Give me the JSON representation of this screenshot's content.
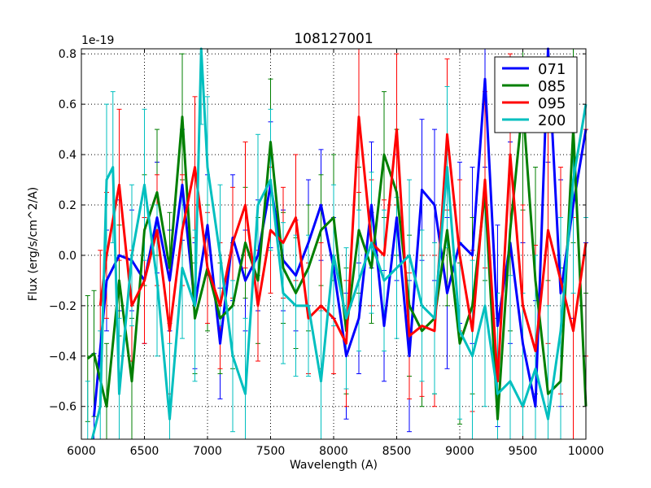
{
  "chart_data": {
    "type": "line",
    "title": "108127001",
    "xlabel": "Wavelength (A)",
    "ylabel": "Flux (erg/s/cm^2/A)",
    "y_offset_label": "1e-19",
    "xlim": [
      6000,
      10000
    ],
    "ylim": [
      -0.73,
      0.82
    ],
    "xticks": [
      6000,
      6500,
      7000,
      7500,
      8000,
      8500,
      9000,
      9500,
      10000
    ],
    "xtick_labels": [
      "6000",
      "6500",
      "7000",
      "7500",
      "8000",
      "8500",
      "9000",
      "9500",
      "10000"
    ],
    "yticks": [
      -0.6,
      -0.4,
      -0.2,
      0.0,
      0.2,
      0.4,
      0.6,
      0.8
    ],
    "ytick_labels": [
      "−0.6",
      "−0.4",
      "−0.2",
      "0.0",
      "0.2",
      "0.4",
      "0.6",
      "0.8"
    ],
    "grid": true,
    "legend_position": "top-right",
    "error_bars": true,
    "series": [
      {
        "name": "071",
        "color": "#0000ff",
        "x": [
          6100,
          6200,
          6300,
          6400,
          6500,
          6600,
          6700,
          6800,
          6900,
          7000,
          7100,
          7200,
          7300,
          7400,
          7500,
          7600,
          7700,
          7800,
          7900,
          8000,
          8100,
          8200,
          8300,
          8400,
          8500,
          8600,
          8700,
          8800,
          8900,
          9000,
          9100,
          9200,
          9300,
          9400,
          9500,
          9600,
          9700,
          9800,
          9900,
          10000
        ],
        "y": [
          -0.64,
          -0.1,
          0.0,
          -0.02,
          -0.1,
          0.15,
          -0.1,
          0.28,
          -0.2,
          0.12,
          -0.35,
          0.07,
          -0.1,
          0.0,
          0.28,
          -0.02,
          -0.08,
          0.05,
          0.2,
          -0.05,
          -0.4,
          -0.25,
          0.2,
          -0.28,
          0.15,
          -0.4,
          0.26,
          0.2,
          -0.15,
          0.05,
          0.0,
          0.7,
          -0.28,
          0.05,
          -0.35,
          -0.6,
          0.82,
          -0.15,
          0.2,
          0.5
        ],
        "err": [
          0.25,
          0.2,
          0.22,
          0.2,
          0.25,
          0.22,
          0.2,
          0.22,
          0.25,
          0.2,
          0.22,
          0.25,
          0.2,
          0.22,
          0.25,
          0.2,
          0.22,
          0.25,
          0.22,
          0.2,
          0.25,
          0.22,
          0.25,
          0.22,
          0.25,
          0.3,
          0.28,
          0.3,
          0.3,
          0.32,
          0.35,
          0.35,
          0.4,
          0.4,
          0.4,
          0.42,
          0.45,
          0.45,
          0.45,
          0.45
        ]
      },
      {
        "name": "085",
        "color": "#007f00",
        "x": [
          6050,
          6100,
          6200,
          6300,
          6400,
          6500,
          6600,
          6700,
          6800,
          6900,
          7000,
          7100,
          7200,
          7300,
          7400,
          7500,
          7600,
          7700,
          7800,
          7900,
          8000,
          8100,
          8200,
          8300,
          8400,
          8500,
          8600,
          8700,
          8800,
          8900,
          9000,
          9100,
          9200,
          9300,
          9400,
          9500,
          9600,
          9700,
          9800,
          9900,
          10000
        ],
        "y": [
          -0.41,
          -0.39,
          -0.6,
          -0.1,
          -0.5,
          0.1,
          0.25,
          -0.05,
          0.55,
          -0.25,
          -0.05,
          -0.25,
          -0.2,
          0.05,
          -0.1,
          0.45,
          -0.05,
          -0.15,
          -0.05,
          0.1,
          0.15,
          -0.3,
          0.1,
          -0.05,
          0.4,
          0.25,
          -0.2,
          -0.3,
          -0.25,
          0.1,
          -0.35,
          -0.2,
          0.25,
          -0.65,
          0.1,
          0.6,
          -0.1,
          -0.55,
          -0.5,
          0.5,
          -0.6
        ],
        "err": [
          0.25,
          0.25,
          0.25,
          0.22,
          0.25,
          0.22,
          0.25,
          0.22,
          0.25,
          0.22,
          0.25,
          0.22,
          0.25,
          0.22,
          0.25,
          0.25,
          0.22,
          0.22,
          0.25,
          0.22,
          0.25,
          0.25,
          0.25,
          0.22,
          0.25,
          0.25,
          0.28,
          0.3,
          0.3,
          0.3,
          0.32,
          0.35,
          0.35,
          0.4,
          0.4,
          0.42,
          0.45,
          0.45,
          0.45,
          0.45,
          0.45
        ]
      },
      {
        "name": "095",
        "color": "#ff0000",
        "x": [
          6150,
          6200,
          6300,
          6400,
          6500,
          6600,
          6700,
          6800,
          6900,
          7000,
          7100,
          7200,
          7300,
          7400,
          7500,
          7600,
          7700,
          7800,
          7900,
          8000,
          8100,
          8200,
          8300,
          8400,
          8500,
          8600,
          8700,
          8800,
          8900,
          9000,
          9100,
          9200,
          9300,
          9400,
          9500,
          9600,
          9700,
          9800,
          9900,
          10000
        ],
        "y": [
          -0.2,
          0.0,
          0.28,
          -0.2,
          -0.1,
          0.1,
          -0.3,
          0.1,
          0.35,
          -0.05,
          -0.2,
          0.05,
          0.2,
          -0.2,
          0.1,
          0.05,
          0.15,
          -0.25,
          -0.2,
          -0.25,
          -0.35,
          0.55,
          0.05,
          0.0,
          0.5,
          -0.32,
          -0.28,
          -0.3,
          0.48,
          0.0,
          -0.3,
          0.3,
          -0.5,
          0.4,
          -0.2,
          -0.38,
          0.1,
          -0.1,
          -0.3,
          0.05
        ],
        "err": [
          0.22,
          0.25,
          0.3,
          0.22,
          0.25,
          0.22,
          0.25,
          0.22,
          0.28,
          0.22,
          0.25,
          0.22,
          0.25,
          0.22,
          0.25,
          0.22,
          0.25,
          0.22,
          0.25,
          0.22,
          0.25,
          0.3,
          0.25,
          0.22,
          0.3,
          0.25,
          0.28,
          0.3,
          0.3,
          0.3,
          0.32,
          0.35,
          0.35,
          0.4,
          0.4,
          0.42,
          0.45,
          0.45,
          0.45,
          0.45
        ]
      },
      {
        "name": "200",
        "color": "#00bfbf",
        "x": [
          6050,
          6150,
          6200,
          6250,
          6300,
          6400,
          6500,
          6600,
          6700,
          6800,
          6900,
          6950,
          7000,
          7100,
          7200,
          7300,
          7400,
          7500,
          7600,
          7700,
          7800,
          7900,
          8000,
          8100,
          8200,
          8300,
          8400,
          8500,
          8600,
          8700,
          8800,
          8900,
          9000,
          9100,
          9200,
          9300,
          9400,
          9500,
          9600,
          9700,
          9800,
          9900,
          10000
        ],
        "y": [
          -0.8,
          -0.6,
          0.3,
          0.35,
          -0.55,
          0.0,
          0.28,
          -0.1,
          -0.65,
          -0.05,
          -0.2,
          0.82,
          0.35,
          0.0,
          -0.4,
          -0.55,
          0.2,
          0.3,
          -0.15,
          -0.2,
          -0.2,
          -0.5,
          0.0,
          -0.25,
          -0.1,
          0.05,
          -0.1,
          -0.05,
          0.0,
          -0.2,
          -0.25,
          0.35,
          -0.3,
          -0.4,
          -0.2,
          -0.55,
          -0.5,
          -0.6,
          -0.45,
          -0.65,
          -0.3,
          0.3,
          0.6
        ],
        "err": [
          0.3,
          0.3,
          0.3,
          0.3,
          0.3,
          0.28,
          0.3,
          0.3,
          0.3,
          0.28,
          0.3,
          0.3,
          0.28,
          0.28,
          0.3,
          0.3,
          0.28,
          0.28,
          0.28,
          0.28,
          0.28,
          0.28,
          0.28,
          0.28,
          0.28,
          0.28,
          0.28,
          0.28,
          0.3,
          0.3,
          0.3,
          0.32,
          0.35,
          0.38,
          0.4,
          0.4,
          0.42,
          0.45,
          0.45,
          0.45,
          0.45,
          0.45,
          0.45
        ]
      }
    ]
  }
}
